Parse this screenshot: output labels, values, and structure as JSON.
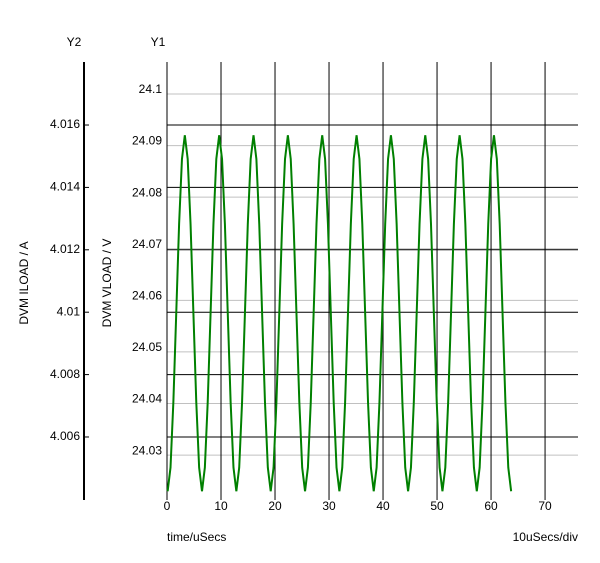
{
  "chart_data": {
    "type": "line",
    "y_label": "DVM VLOAD / V",
    "y2_label": "DVM ILOAD / A",
    "y_axis_name": "Y1",
    "y2_axis_name": "Y2",
    "x_label": "time/uSecs",
    "x_scale_note": "10uSecs/div",
    "xlim": [
      0,
      76.1
    ],
    "xticks": [
      0,
      10,
      20,
      30,
      40,
      50,
      60,
      70
    ],
    "ylim": [
      24.0213,
      24.1062
    ],
    "yticks": [
      24.03,
      24.04,
      24.05,
      24.06,
      24.07,
      24.08,
      24.09,
      24.1
    ],
    "y2lim": [
      4.00398,
      4.01802
    ],
    "y2ticks": [
      4.006,
      4.008,
      4.01,
      4.012,
      4.014,
      4.016
    ],
    "grid": true,
    "x": [
      0.12,
      0.65,
      1.18,
      1.71,
      2.24,
      2.77,
      3.3,
      3.83,
      4.36,
      4.89,
      5.42,
      5.95,
      6.48,
      7.01,
      7.54,
      8.07,
      8.6,
      9.13,
      9.66,
      10.19,
      10.72,
      11.25,
      11.78,
      12.31,
      12.84,
      13.37,
      13.9,
      14.43,
      14.96,
      15.49,
      16.02,
      16.55,
      17.08,
      17.61,
      18.14,
      18.67,
      19.2,
      19.73,
      20.26,
      20.79,
      21.32,
      21.85,
      22.38,
      22.91,
      23.44,
      23.97,
      24.5,
      25.03,
      25.56,
      26.09,
      26.62,
      27.15,
      27.68,
      28.21,
      28.74,
      29.27,
      29.8,
      30.33,
      30.86,
      31.39,
      31.92,
      32.45,
      32.98,
      33.51,
      34.04,
      34.57,
      35.1,
      35.63,
      36.16,
      36.69,
      37.22,
      37.75,
      38.28,
      38.81,
      39.34,
      39.87,
      40.4,
      40.93,
      41.46,
      41.99,
      42.52,
      43.05,
      43.58,
      44.11,
      44.64,
      45.17,
      45.7,
      46.23,
      46.76,
      47.29,
      47.82,
      48.35,
      48.88,
      49.41,
      49.94,
      50.47,
      51.0,
      51.53,
      52.06,
      52.59,
      53.12,
      53.65,
      54.18,
      54.71,
      55.24,
      55.77,
      56.3,
      56.83,
      57.36,
      57.89,
      58.42,
      58.95,
      59.48,
      60.01,
      60.54,
      61.07,
      61.6,
      62.13,
      62.66,
      63.19,
      63.72
    ],
    "series": [
      {
        "color": "#008000",
        "values": [
          24.023,
          24.0276,
          24.0403,
          24.0575,
          24.0748,
          24.0874,
          24.092,
          24.0874,
          24.0748,
          24.0575,
          24.0403,
          24.0276,
          24.023,
          24.0276,
          24.0403,
          24.0575,
          24.0748,
          24.0874,
          24.092,
          24.0874,
          24.0748,
          24.0575,
          24.0403,
          24.0276,
          24.023,
          24.0276,
          24.0403,
          24.0575,
          24.0748,
          24.0874,
          24.092,
          24.0874,
          24.0748,
          24.0575,
          24.0403,
          24.0276,
          24.023,
          24.0276,
          24.0403,
          24.0575,
          24.0748,
          24.0874,
          24.092,
          24.0874,
          24.0748,
          24.0575,
          24.0403,
          24.0276,
          24.023,
          24.0276,
          24.0403,
          24.0575,
          24.0748,
          24.0874,
          24.092,
          24.0874,
          24.0748,
          24.0575,
          24.0403,
          24.0276,
          24.023,
          24.0276,
          24.0403,
          24.0575,
          24.0748,
          24.0874,
          24.092,
          24.0874,
          24.0748,
          24.0575,
          24.0403,
          24.0276,
          24.023,
          24.0276,
          24.0403,
          24.0575,
          24.0748,
          24.0874,
          24.092,
          24.0874,
          24.0748,
          24.0575,
          24.0403,
          24.0276,
          24.023,
          24.0276,
          24.0403,
          24.0575,
          24.0748,
          24.0874,
          24.092,
          24.0874,
          24.0748,
          24.0575,
          24.0403,
          24.0276,
          24.023,
          24.0276,
          24.0403,
          24.0575,
          24.0748,
          24.0874,
          24.092,
          24.0874,
          24.0748,
          24.0575,
          24.0403,
          24.0276,
          24.023,
          24.0276,
          24.0403,
          24.0575,
          24.0748,
          24.0874,
          24.092,
          24.0874,
          24.0748,
          24.0575,
          24.0403,
          24.0276,
          24.023
        ]
      }
    ]
  }
}
